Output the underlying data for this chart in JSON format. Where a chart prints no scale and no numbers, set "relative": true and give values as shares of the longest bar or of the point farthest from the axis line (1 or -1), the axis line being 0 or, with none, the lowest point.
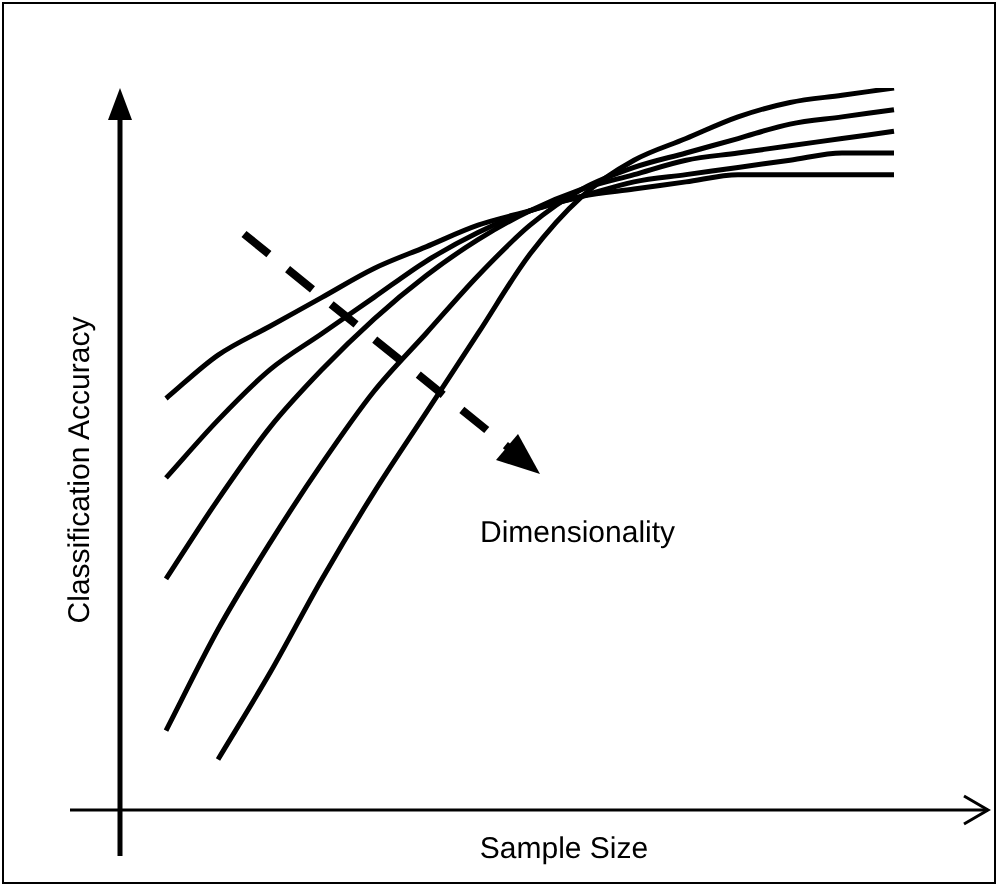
{
  "chart_data": {
    "type": "line",
    "relative": true,
    "xlabel": "Sample Size",
    "ylabel": "Classification Accuracy",
    "annotations": [
      "Dimensionality"
    ],
    "categories": [
      null,
      null,
      null,
      null,
      null,
      null,
      null,
      null,
      null,
      null,
      null,
      null,
      null,
      null,
      null
    ],
    "marker": "none",
    "legend": false,
    "tick_labels": false,
    "series": [
      {
        "color": "#000000",
        "values": [
          0.57,
          0.63,
          0.67,
          0.71,
          0.75,
          0.78,
          0.81,
          0.83,
          0.85,
          0.86,
          0.87,
          0.88,
          0.88,
          0.88,
          0.88
        ]
      },
      {
        "color": "#000000",
        "values": [
          0.46,
          0.54,
          0.61,
          0.66,
          0.71,
          0.76,
          0.8,
          0.83,
          0.85,
          0.87,
          0.88,
          0.89,
          0.9,
          0.91,
          0.91
        ]
      },
      {
        "color": "#000000",
        "values": [
          0.32,
          0.43,
          0.53,
          0.61,
          0.68,
          0.74,
          0.79,
          0.83,
          0.86,
          0.88,
          0.9,
          0.91,
          0.92,
          0.93,
          0.94
        ]
      },
      {
        "color": "#000000",
        "values": [
          0.11,
          0.25,
          0.37,
          0.48,
          0.58,
          0.66,
          0.74,
          0.81,
          0.86,
          0.89,
          0.91,
          0.93,
          0.95,
          0.96,
          0.97
        ]
      },
      {
        "color": "#000000",
        "values": [
          null,
          0.07,
          0.19,
          0.32,
          0.44,
          0.55,
          0.66,
          0.77,
          0.85,
          0.9,
          0.93,
          0.96,
          0.98,
          0.99,
          1
        ]
      }
    ]
  }
}
